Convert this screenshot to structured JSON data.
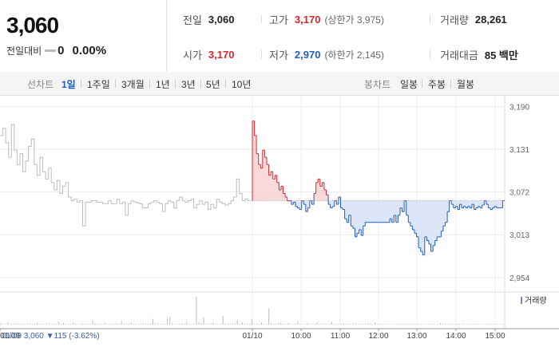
{
  "summary": {
    "price": "3,060",
    "change_label": "전일대비",
    "change_value": "0",
    "change_pct": "0.00%"
  },
  "stats": {
    "prev_label": "전일",
    "prev_value": "3,060",
    "high_label": "고가",
    "high_value": "3,170",
    "high_sub": "(상한가 3,975)",
    "volume_label": "거래량",
    "volume_value": "28,261",
    "open_label": "시가",
    "open_value": "3,170",
    "low_label": "저가",
    "low_value": "2,970",
    "low_sub": "(하한가 2,145)",
    "amount_label": "거래대금",
    "amount_value": "85 백만"
  },
  "toolbar": {
    "line_label": "선차트",
    "ranges": [
      "1일",
      "1주일",
      "3개월",
      "1년",
      "3년",
      "5년",
      "10년"
    ],
    "active_range": "1일",
    "candle_label": "봉차트",
    "candles": [
      "일봉",
      "주봉",
      "월봉"
    ]
  },
  "colors": {
    "up": "#e0232d",
    "down": "#1e5dc5",
    "prev_day_line": "#bdbdbd",
    "volume_bar": "#b9b9cf",
    "grid": "#ececec"
  },
  "chart_data": {
    "type": "line",
    "title": "",
    "ylim": [
      2935,
      3205
    ],
    "y_ticks": [
      "3,190",
      "3,131",
      "3,072",
      "3,013",
      "2,954"
    ],
    "y_tick_values": [
      3190,
      3131,
      3072,
      3013,
      2954
    ],
    "x_ticks": [
      "01/09",
      "01/10",
      "10:00",
      "11:00",
      "12:00",
      "13:00",
      "14:00",
      "15:00"
    ],
    "reference_price": 3060,
    "prev_day_label": "01/09 3,060 ▼115 (-3.62%)",
    "volume_legend": "거래량",
    "series": [
      {
        "name": "01/09",
        "values": [
          3150,
          3160,
          3140,
          3120,
          3165,
          3130,
          3110,
          3125,
          3100,
          3115,
          3135,
          3145,
          3110,
          3095,
          3120,
          3100,
          3090,
          3105,
          3085,
          3075,
          3088,
          3070,
          3080,
          3085,
          3065,
          3060,
          3062,
          3058,
          3060,
          3025,
          3058,
          3058,
          3060,
          3060,
          3058,
          3058,
          3056,
          3056,
          3060,
          3056,
          3056,
          3062,
          3056,
          3058,
          3040,
          3056,
          3060,
          3058,
          3057,
          3056,
          3050,
          3050,
          3056,
          3058,
          3060,
          3058,
          3056,
          3045,
          3056,
          3060,
          3058,
          3050,
          3060,
          3065,
          3060,
          3058,
          3060,
          3062,
          3050,
          3055,
          3060,
          3055,
          3058,
          3048,
          3055,
          3050,
          3062,
          3058,
          3056,
          3054,
          3056,
          3060,
          3065,
          3090,
          3070,
          3060,
          3062,
          3060
        ]
      },
      {
        "name": "01/10",
        "values": [
          3170,
          3150,
          3125,
          3110,
          3105,
          3130,
          3120,
          3110,
          3095,
          3100,
          3090,
          3095,
          3085,
          3075,
          3080,
          3070,
          3065,
          3060,
          3060,
          3055,
          3058,
          3052,
          3050,
          3048,
          3060,
          3055,
          3045,
          3050,
          3060,
          3055,
          3070,
          3085,
          3090,
          3080,
          3085,
          3075,
          3068,
          3055,
          3050,
          3052,
          3060,
          3055,
          3065,
          3050,
          3048,
          3035,
          3030,
          3040,
          3025,
          3022,
          3010,
          3015,
          3020,
          3012,
          3025,
          3030,
          3030,
          3030,
          3030,
          3030,
          3030,
          3030,
          3030,
          3030,
          3030,
          3030,
          3030,
          3035,
          3030,
          3040,
          3030,
          3040,
          3050,
          3045,
          3060,
          3040,
          3030,
          3025,
          3020,
          3015,
          3010,
          2995,
          2990,
          2985,
          3010,
          3005,
          3000,
          2990,
          2998,
          3005,
          3010,
          3010,
          3018,
          3025,
          3030,
          3045,
          3060,
          3055,
          3050,
          3052,
          3048,
          3055,
          3050,
          3052,
          3050,
          3052,
          3050,
          3055,
          3048,
          3050,
          3052,
          3050,
          3054,
          3060,
          3055,
          3050,
          3048,
          3050,
          3052,
          3050,
          3050,
          3050,
          3060
        ]
      }
    ],
    "volume": [
      2,
      1,
      1,
      3,
      1,
      1,
      1,
      2,
      1,
      1,
      1,
      1,
      2,
      1,
      1,
      3,
      1,
      1,
      1,
      2,
      1,
      1,
      1,
      1,
      4,
      1,
      2,
      1,
      1,
      1,
      3,
      1,
      1,
      1,
      2,
      1,
      1,
      1,
      6,
      2,
      1,
      1,
      1,
      3,
      1,
      1,
      1,
      1,
      2,
      1,
      5,
      1,
      1,
      1,
      3,
      1,
      1,
      1,
      1,
      2,
      1,
      1,
      1,
      8,
      2,
      1,
      1,
      1,
      1,
      9,
      10,
      2,
      1,
      1,
      1,
      2,
      1,
      4,
      1,
      1,
      1,
      38,
      3,
      2,
      10,
      1,
      1,
      2,
      3,
      1,
      1,
      1,
      12,
      2,
      1,
      1,
      1,
      2,
      6,
      1,
      3,
      1,
      2,
      1,
      7,
      1,
      1,
      1,
      3,
      1,
      1,
      22,
      2,
      1,
      1,
      2,
      3,
      1,
      1,
      2,
      1,
      1,
      1,
      5,
      1,
      1,
      1,
      2,
      1,
      1,
      1,
      3,
      1,
      2,
      1,
      1,
      1,
      4,
      1,
      1,
      1,
      1,
      2,
      1,
      1,
      1,
      1,
      2,
      1,
      1,
      1,
      1,
      2,
      1,
      1,
      3,
      1,
      1,
      1,
      1,
      1,
      1,
      1,
      1,
      1,
      1,
      1,
      1,
      1,
      1,
      1,
      1,
      1,
      1,
      1,
      1,
      1,
      1,
      1,
      1,
      1,
      1,
      2,
      1,
      2,
      1,
      1,
      1,
      1,
      1,
      1,
      1,
      1,
      1,
      1,
      1,
      1,
      1,
      1,
      1,
      1,
      1,
      1,
      1,
      1,
      1,
      1,
      1,
      1
    ]
  }
}
